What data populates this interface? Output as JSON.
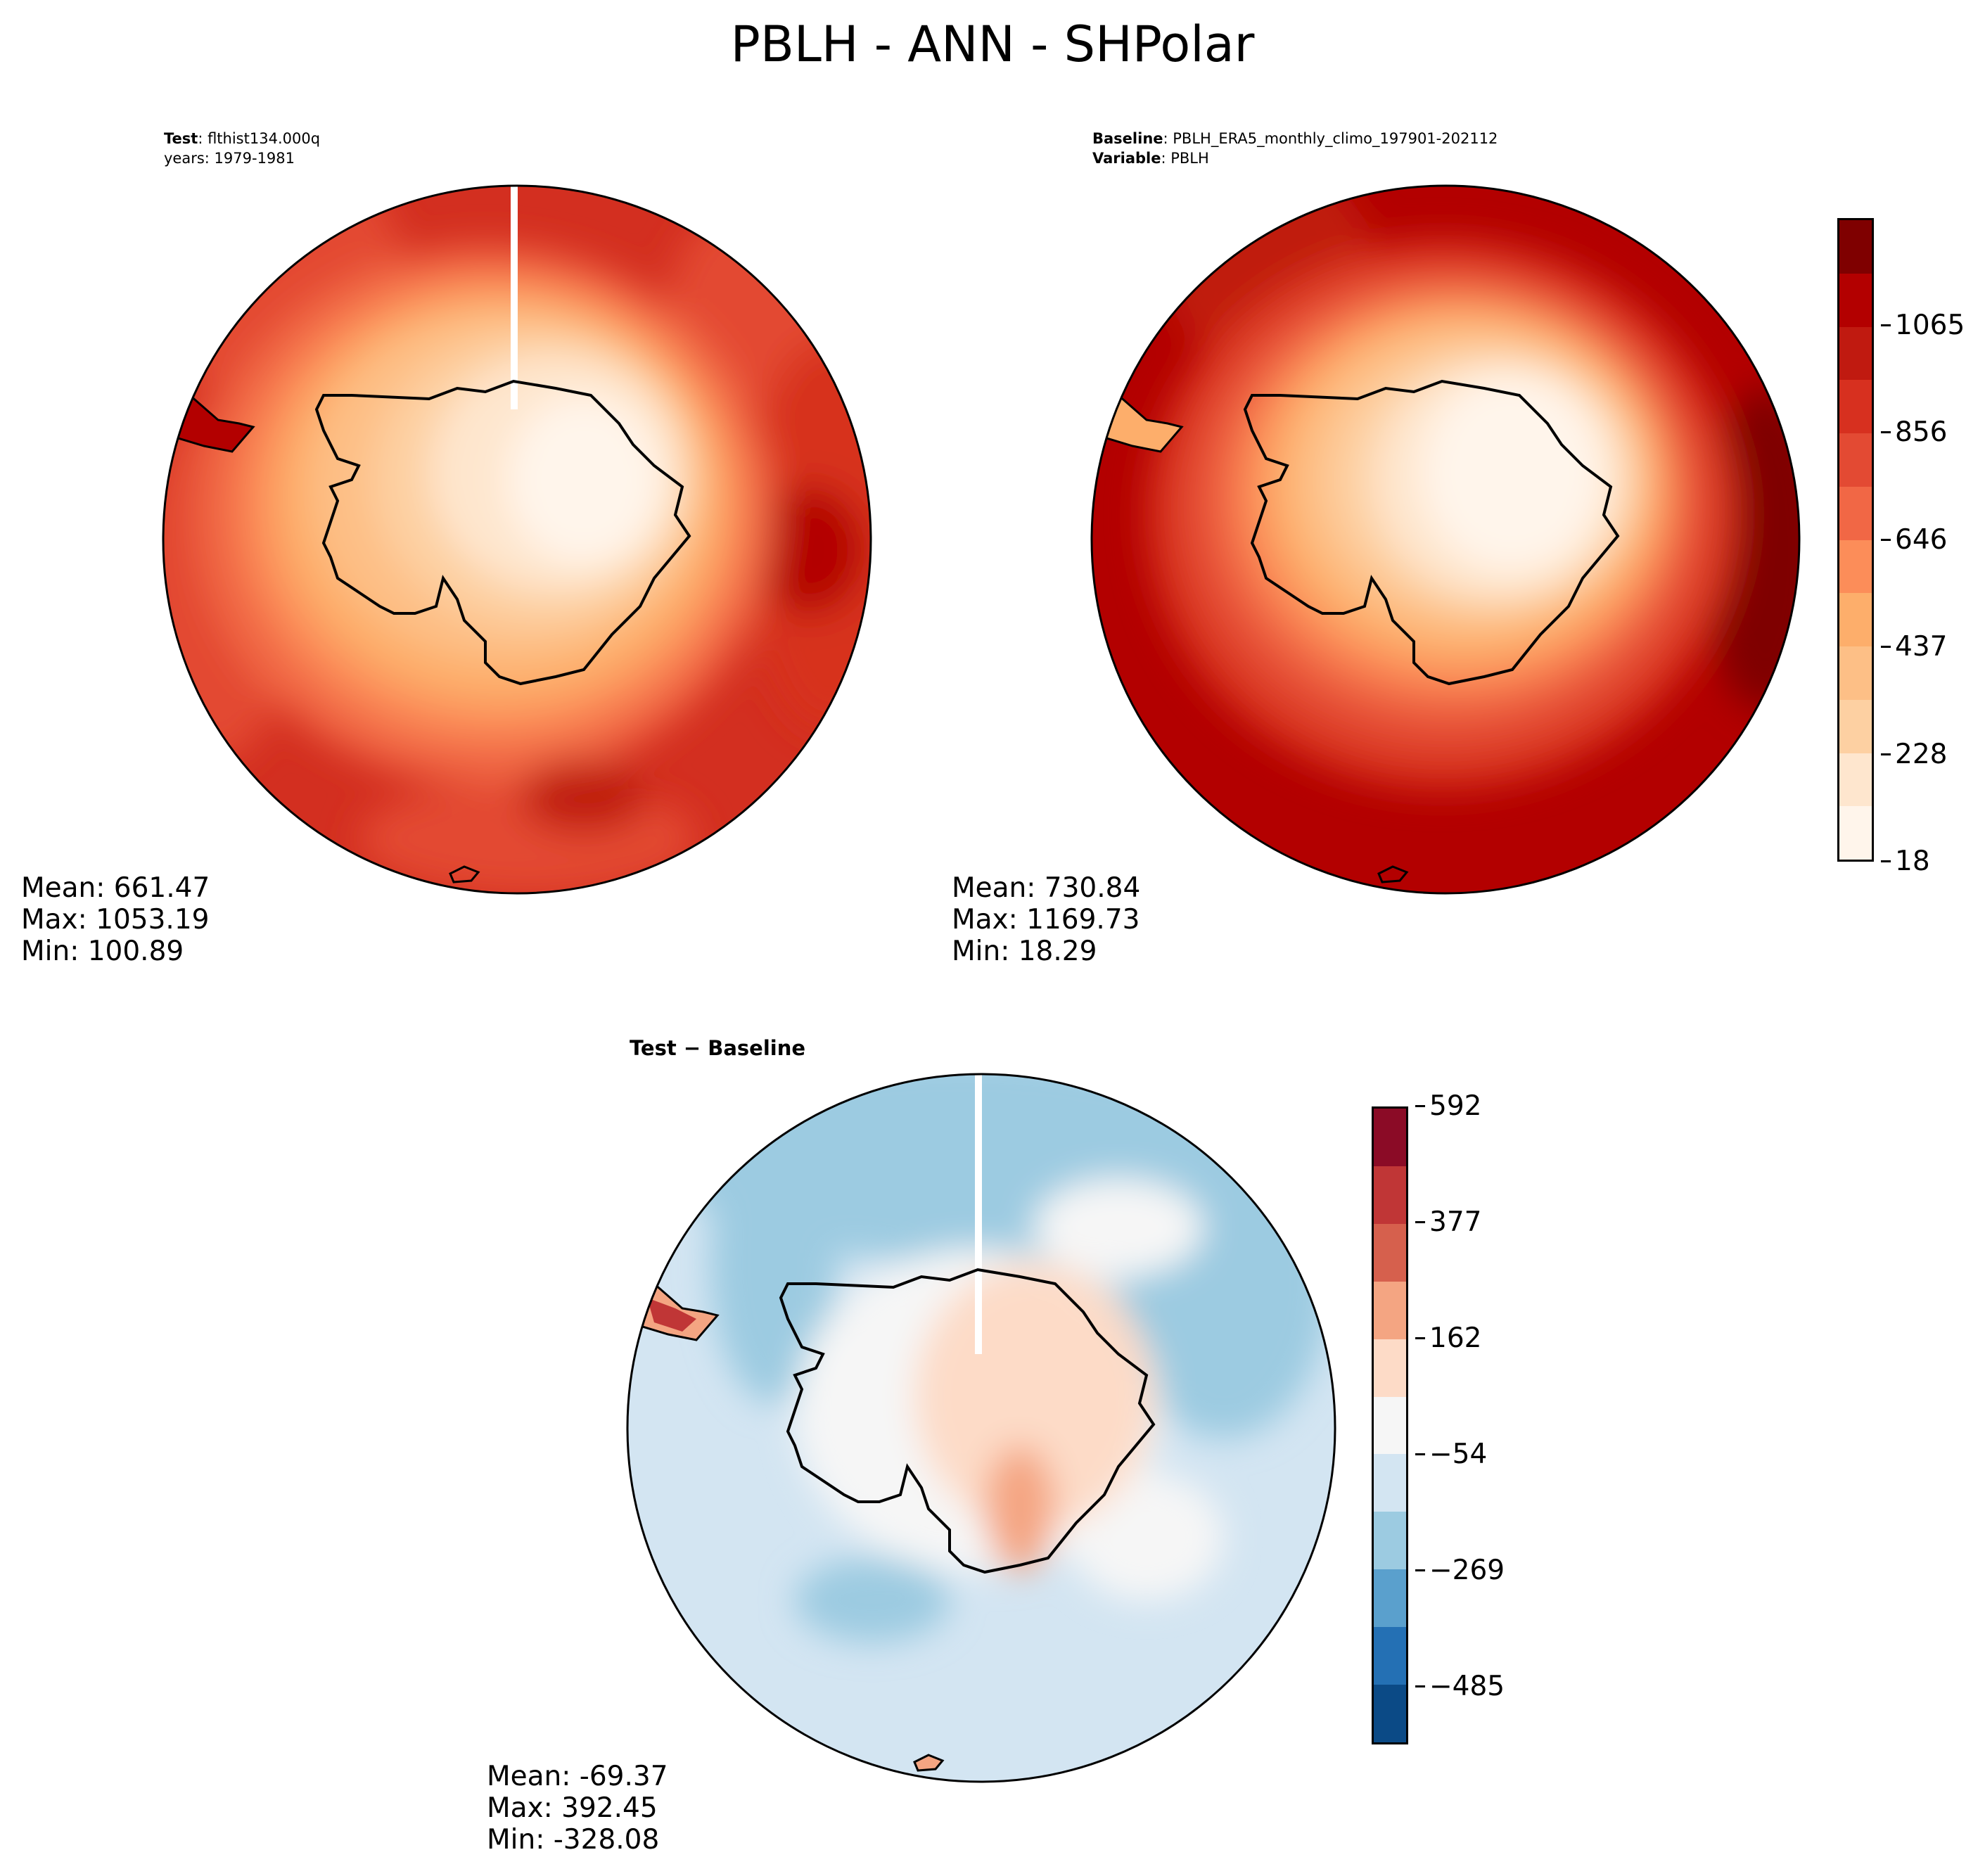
{
  "title": "PBLH - ANN - SHPolar",
  "panels": {
    "test": {
      "label_bold": "Test",
      "label_value": ": flthist134.000q",
      "years": "years: 1979-1981",
      "mean": "Mean: 661.47",
      "max": "Max: 1053.19",
      "min": "Min: 100.89"
    },
    "baseline": {
      "label_bold": "Baseline",
      "label_value": ": PBLH_ERA5_monthly_climo_197901-202112",
      "variable_bold": "Variable",
      "variable_value": ": PBLH",
      "mean": "Mean: 730.84",
      "max": "Max: 1169.73",
      "min": "Min: 18.29"
    },
    "diff": {
      "title": "Test − Baseline",
      "mean": "Mean: -69.37",
      "max": "Max: 392.45",
      "min": "Min: -328.08"
    }
  },
  "colorbars": {
    "main": {
      "ticks": [
        "18",
        "228",
        "437",
        "646",
        "856",
        "1065"
      ],
      "colors": [
        "#fff5eb",
        "#fee6ce",
        "#fdd0a2",
        "#fdbf86",
        "#fdae6b",
        "#fc8d59",
        "#f16745",
        "#e34a33",
        "#d7301f",
        "#c01a10",
        "#b30000",
        "#7f0000"
      ]
    },
    "diff": {
      "ticks": [
        "−485",
        "−269",
        "−54",
        "162",
        "377",
        "592"
      ],
      "colors": [
        "#0b4a86",
        "#2470b4",
        "#5aa0cd",
        "#9ccbe1",
        "#d3e5f2",
        "#f6f6f6",
        "#fddbc7",
        "#f4a582",
        "#d6604d",
        "#c03636",
        "#8b0b26"
      ]
    }
  },
  "chart_data": [
    {
      "type": "heatmap",
      "title": "Test: flthist134.000q (years: 1979-1981)",
      "projection": "south-polar-stereographic",
      "variable": "PBLH",
      "stats": {
        "mean": 661.47,
        "max": 1053.19,
        "min": 100.89
      },
      "colorbar_levels": [
        18,
        228,
        437,
        646,
        856,
        1065
      ]
    },
    {
      "type": "heatmap",
      "title": "Baseline: PBLH_ERA5_monthly_climo_197901-202112",
      "projection": "south-polar-stereographic",
      "variable": "PBLH",
      "stats": {
        "mean": 730.84,
        "max": 1169.73,
        "min": 18.29
      },
      "colorbar_levels": [
        18,
        228,
        437,
        646,
        856,
        1065
      ]
    },
    {
      "type": "heatmap",
      "title": "Test − Baseline",
      "projection": "south-polar-stereographic",
      "variable": "PBLH",
      "stats": {
        "mean": -69.37,
        "max": 392.45,
        "min": -328.08
      },
      "colorbar_levels": [
        -485,
        -269,
        -54,
        162,
        377,
        592
      ]
    }
  ]
}
